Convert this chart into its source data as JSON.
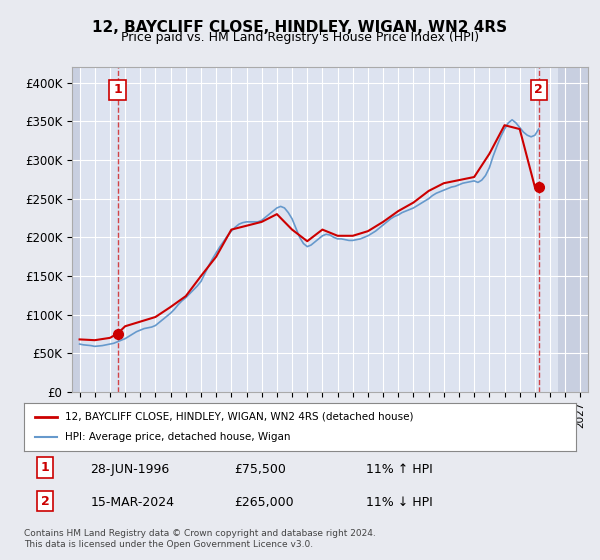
{
  "title": "12, BAYCLIFF CLOSE, HINDLEY, WIGAN, WN2 4RS",
  "subtitle": "Price paid vs. HM Land Registry's House Price Index (HPI)",
  "xlabel": "",
  "ylabel": "",
  "ylim": [
    0,
    420000
  ],
  "yticks": [
    0,
    50000,
    100000,
    150000,
    200000,
    250000,
    300000,
    350000,
    400000
  ],
  "ytick_labels": [
    "£0",
    "£50K",
    "£100K",
    "£150K",
    "£200K",
    "£250K",
    "£300K",
    "£350K",
    "£400K"
  ],
  "bg_color": "#e8eaf0",
  "plot_bg_color": "#dde3f0",
  "hatch_color": "#c8cfe0",
  "grid_color": "#ffffff",
  "sale1_date": "1996-06-28",
  "sale1_price": 75500,
  "sale1_label": "1",
  "sale2_date": "2024-03-15",
  "sale2_price": 265000,
  "sale2_label": "2",
  "sale1_date_str": "28-JUN-1996",
  "sale2_date_str": "15-MAR-2024",
  "sale1_pct": "11% ↑ HPI",
  "sale2_pct": "11% ↓ HPI",
  "legend_label1": "12, BAYCLIFF CLOSE, HINDLEY, WIGAN, WN2 4RS (detached house)",
  "legend_label2": "HPI: Average price, detached house, Wigan",
  "footer": "Contains HM Land Registry data © Crown copyright and database right 2024.\nThis data is licensed under the Open Government Licence v3.0.",
  "line_color_red": "#cc0000",
  "line_color_blue": "#6699cc",
  "marker_color": "#cc0000",
  "sale_box_color": "#cc0000",
  "hpi_data": {
    "dates": [
      1994.0,
      1994.25,
      1994.5,
      1994.75,
      1995.0,
      1995.25,
      1995.5,
      1995.75,
      1996.0,
      1996.25,
      1996.5,
      1996.75,
      1997.0,
      1997.25,
      1997.5,
      1997.75,
      1998.0,
      1998.25,
      1998.5,
      1998.75,
      1999.0,
      1999.25,
      1999.5,
      1999.75,
      2000.0,
      2000.25,
      2000.5,
      2000.75,
      2001.0,
      2001.25,
      2001.5,
      2001.75,
      2002.0,
      2002.25,
      2002.5,
      2002.75,
      2003.0,
      2003.25,
      2003.5,
      2003.75,
      2004.0,
      2004.25,
      2004.5,
      2004.75,
      2005.0,
      2005.25,
      2005.5,
      2005.75,
      2006.0,
      2006.25,
      2006.5,
      2006.75,
      2007.0,
      2007.25,
      2007.5,
      2007.75,
      2008.0,
      2008.25,
      2008.5,
      2008.75,
      2009.0,
      2009.25,
      2009.5,
      2009.75,
      2010.0,
      2010.25,
      2010.5,
      2010.75,
      2011.0,
      2011.25,
      2011.5,
      2011.75,
      2012.0,
      2012.25,
      2012.5,
      2012.75,
      2013.0,
      2013.25,
      2013.5,
      2013.75,
      2014.0,
      2014.25,
      2014.5,
      2014.75,
      2015.0,
      2015.25,
      2015.5,
      2015.75,
      2016.0,
      2016.25,
      2016.5,
      2016.75,
      2017.0,
      2017.25,
      2017.5,
      2017.75,
      2018.0,
      2018.25,
      2018.5,
      2018.75,
      2019.0,
      2019.25,
      2019.5,
      2019.75,
      2020.0,
      2020.25,
      2020.5,
      2020.75,
      2021.0,
      2021.25,
      2021.5,
      2021.75,
      2022.0,
      2022.25,
      2022.5,
      2022.75,
      2023.0,
      2023.25,
      2023.5,
      2023.75,
      2024.0,
      2024.25
    ],
    "values": [
      62000,
      61000,
      60500,
      60000,
      59000,
      59500,
      60000,
      61000,
      62000,
      63000,
      65000,
      67000,
      69000,
      72000,
      75000,
      78000,
      80000,
      82000,
      83000,
      84000,
      86000,
      90000,
      94000,
      98000,
      102000,
      107000,
      113000,
      118000,
      122000,
      127000,
      132000,
      137000,
      143000,
      153000,
      163000,
      172000,
      180000,
      188000,
      195000,
      202000,
      208000,
      213000,
      217000,
      219000,
      220000,
      220000,
      220000,
      220000,
      222000,
      226000,
      230000,
      234000,
      238000,
      240000,
      238000,
      232000,
      224000,
      212000,
      200000,
      192000,
      188000,
      190000,
      194000,
      198000,
      202000,
      204000,
      203000,
      200000,
      198000,
      198000,
      197000,
      196000,
      196000,
      197000,
      198000,
      200000,
      202000,
      205000,
      208000,
      212000,
      216000,
      220000,
      224000,
      227000,
      229000,
      232000,
      234000,
      236000,
      238000,
      241000,
      244000,
      247000,
      250000,
      254000,
      257000,
      259000,
      261000,
      263000,
      265000,
      266000,
      268000,
      270000,
      271000,
      272000,
      273000,
      271000,
      274000,
      280000,
      290000,
      305000,
      318000,
      330000,
      340000,
      348000,
      352000,
      348000,
      342000,
      336000,
      332000,
      330000,
      332000,
      340000
    ]
  },
  "property_line_data": {
    "dates": [
      1994.0,
      1995.0,
      1996.0,
      1996.5,
      1997.0,
      1998.0,
      1999.0,
      2000.0,
      2001.0,
      2002.0,
      2003.0,
      2004.0,
      2005.0,
      2006.0,
      2007.0,
      2008.0,
      2009.0,
      2010.0,
      2011.0,
      2012.0,
      2013.0,
      2014.0,
      2015.0,
      2016.0,
      2017.0,
      2018.0,
      2019.0,
      2020.0,
      2021.0,
      2022.0,
      2023.0,
      2024.0,
      2024.25
    ],
    "values": [
      68000,
      67000,
      70000,
      75500,
      85000,
      91000,
      97000,
      110000,
      124000,
      150000,
      175000,
      210000,
      215000,
      220000,
      230000,
      210000,
      195000,
      210000,
      202000,
      202000,
      208000,
      220000,
      234000,
      245000,
      260000,
      270000,
      274000,
      278000,
      308000,
      345000,
      340000,
      265000,
      270000
    ]
  }
}
